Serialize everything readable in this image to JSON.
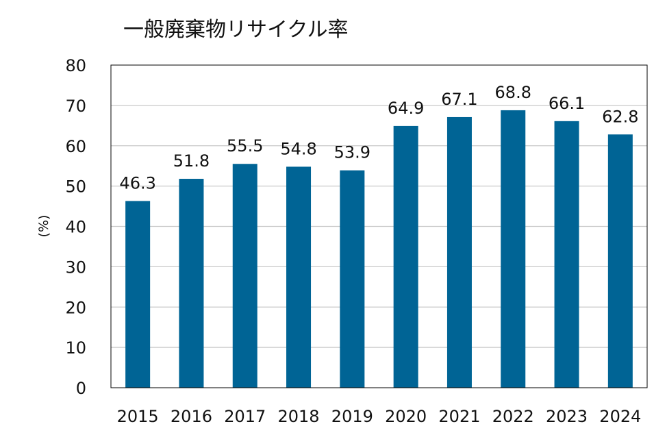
{
  "chart_data": {
    "type": "bar",
    "title": "一般廃棄物リサイクル率",
    "xlabel": "",
    "ylabel": "(%)",
    "categories": [
      "2015",
      "2016",
      "2017",
      "2018",
      "2019",
      "2020",
      "2021",
      "2022",
      "2023",
      "2024"
    ],
    "values": [
      46.3,
      51.8,
      55.5,
      54.8,
      53.9,
      64.9,
      67.1,
      68.8,
      66.1,
      62.8
    ],
    "data_labels": [
      "46.3",
      "51.8",
      "55.5",
      "54.8",
      "53.9",
      "64.9",
      "67.1",
      "68.8",
      "66.1",
      "62.8"
    ],
    "ylim": [
      0,
      80
    ],
    "yticks": [
      0,
      10,
      20,
      30,
      40,
      50,
      60,
      70,
      80
    ],
    "grid": true,
    "legend": "none",
    "colors": {
      "bar": "#006495",
      "grid": "#c8c8c8",
      "axis": "#000000",
      "text": "#111111"
    }
  }
}
